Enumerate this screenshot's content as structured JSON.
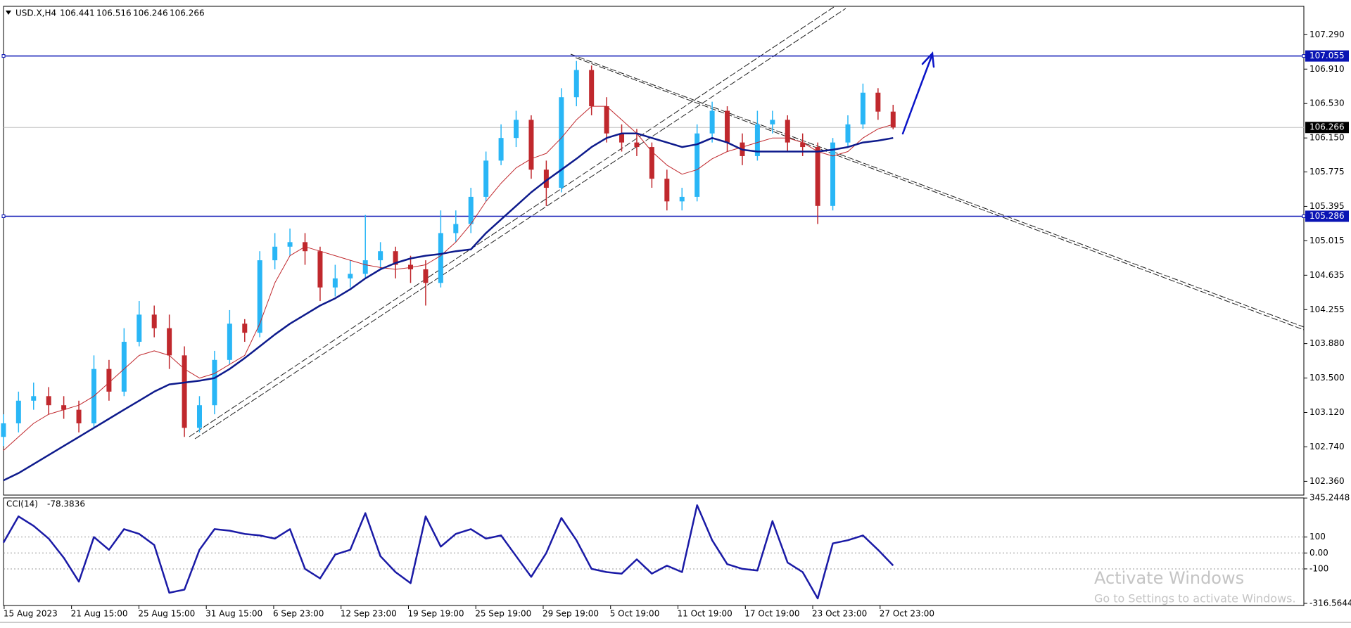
{
  "chart_data": {
    "type": "candlestick",
    "symbol": "USD.X,H4",
    "ylim": [
      102.208,
      107.603
    ],
    "yticks": [
      {
        "value": 107.29,
        "label": "107.290"
      },
      {
        "value": 106.91,
        "label": "106.910"
      },
      {
        "value": 106.53,
        "label": "106.530"
      },
      {
        "value": 106.15,
        "label": "106.150"
      },
      105.775,
      105.395,
      105.015,
      104.635,
      104.255,
      {
        "value": 103.88,
        "label": "103.880"
      },
      {
        "value": 103.5,
        "label": "103.500"
      },
      {
        "value": 103.12,
        "label": "103.120"
      },
      {
        "value": 102.74,
        "label": "102.740"
      },
      {
        "value": 102.36,
        "label": "102.360"
      }
    ],
    "up_color": "#29b6f6",
    "down_color": "#c0282d",
    "candles": [
      [
        102.85,
        103.1,
        102.75,
        103.0
      ],
      [
        103.0,
        103.35,
        102.9,
        103.25
      ],
      [
        103.25,
        103.45,
        103.15,
        103.3
      ],
      [
        103.3,
        103.4,
        103.1,
        103.2
      ],
      [
        103.2,
        103.3,
        103.05,
        103.15
      ],
      [
        103.15,
        103.25,
        102.9,
        103.0
      ],
      [
        103.0,
        103.75,
        102.95,
        103.6
      ],
      [
        103.6,
        103.7,
        103.25,
        103.35
      ],
      [
        103.35,
        104.05,
        103.3,
        103.9
      ],
      [
        103.9,
        104.35,
        103.85,
        104.2
      ],
      [
        104.2,
        104.3,
        103.95,
        104.05
      ],
      [
        104.05,
        104.2,
        103.6,
        103.75
      ],
      [
        103.75,
        103.85,
        102.85,
        102.95
      ],
      [
        102.95,
        103.3,
        102.9,
        103.2
      ],
      [
        103.2,
        103.8,
        103.1,
        103.7
      ],
      [
        103.7,
        104.25,
        103.65,
        104.1
      ],
      [
        104.1,
        104.15,
        103.9,
        104.0
      ],
      [
        104.0,
        104.9,
        103.95,
        104.8
      ],
      [
        104.8,
        105.1,
        104.7,
        104.95
      ],
      [
        104.95,
        105.15,
        104.85,
        105.0
      ],
      [
        105.0,
        105.1,
        104.75,
        104.9
      ],
      [
        104.9,
        104.95,
        104.35,
        104.5
      ],
      [
        104.5,
        104.75,
        104.4,
        104.6
      ],
      [
        104.6,
        104.8,
        104.5,
        104.65
      ],
      [
        104.65,
        105.3,
        104.6,
        104.8
      ],
      [
        104.8,
        105.0,
        104.7,
        104.9
      ],
      [
        104.9,
        104.95,
        104.6,
        104.75
      ],
      [
        104.75,
        104.85,
        104.55,
        104.7
      ],
      [
        104.7,
        104.8,
        104.3,
        104.55
      ],
      [
        104.55,
        105.35,
        104.5,
        105.1
      ],
      [
        105.1,
        105.35,
        105.0,
        105.2
      ],
      [
        105.2,
        105.6,
        105.1,
        105.5
      ],
      [
        105.5,
        106.0,
        105.45,
        105.9
      ],
      [
        105.9,
        106.3,
        105.85,
        106.15
      ],
      [
        106.15,
        106.45,
        106.05,
        106.35
      ],
      [
        106.35,
        106.4,
        105.7,
        105.8
      ],
      [
        105.8,
        105.9,
        105.4,
        105.6
      ],
      [
        105.6,
        106.7,
        105.55,
        106.6
      ],
      [
        106.6,
        107.0,
        106.5,
        106.9
      ],
      [
        106.9,
        106.95,
        106.4,
        106.5
      ],
      [
        106.5,
        106.6,
        106.1,
        106.2
      ],
      [
        106.2,
        106.3,
        106.0,
        106.1
      ],
      [
        106.1,
        106.25,
        105.95,
        106.05
      ],
      [
        106.05,
        106.1,
        105.6,
        105.7
      ],
      [
        105.7,
        105.8,
        105.35,
        105.45
      ],
      [
        105.45,
        105.6,
        105.35,
        105.5
      ],
      [
        105.5,
        106.3,
        105.45,
        106.2
      ],
      [
        106.2,
        106.55,
        106.1,
        106.45
      ],
      [
        106.45,
        106.5,
        106.0,
        106.1
      ],
      [
        106.1,
        106.2,
        105.85,
        105.95
      ],
      [
        105.95,
        106.45,
        105.9,
        106.3
      ],
      [
        106.3,
        106.45,
        106.2,
        106.35
      ],
      [
        106.35,
        106.4,
        106.0,
        106.1
      ],
      [
        106.1,
        106.2,
        105.95,
        106.05
      ],
      [
        106.05,
        106.1,
        105.2,
        105.4
      ],
      [
        105.4,
        106.15,
        105.35,
        106.1
      ],
      [
        106.1,
        106.4,
        106.05,
        106.3
      ],
      [
        106.3,
        106.75,
        106.25,
        106.65
      ],
      [
        106.65,
        106.7,
        106.35,
        106.441
      ],
      [
        106.441,
        106.516,
        106.246,
        106.266
      ]
    ],
    "lines": [
      {
        "color": "#c0282d",
        "width": 1,
        "values": [
          102.7,
          102.85,
          103.0,
          103.1,
          103.15,
          103.2,
          103.3,
          103.45,
          103.6,
          103.75,
          103.8,
          103.75,
          103.6,
          103.5,
          103.55,
          103.65,
          103.75,
          104.1,
          104.55,
          104.85,
          104.95,
          104.9,
          104.85,
          104.8,
          104.75,
          104.72,
          104.7,
          104.72,
          104.75,
          104.85,
          105.0,
          105.2,
          105.45,
          105.65,
          105.82,
          105.92,
          105.98,
          106.15,
          106.35,
          106.5,
          106.5,
          106.35,
          106.2,
          106.0,
          105.85,
          105.75,
          105.8,
          105.92,
          106.0,
          106.05,
          106.1,
          106.15,
          106.15,
          106.1,
          106.0,
          105.95,
          106.0,
          106.15,
          106.25,
          106.3
        ]
      },
      {
        "color": "#0d1a8c",
        "width": 2.5,
        "values": [
          102.37,
          102.45,
          102.55,
          102.65,
          102.75,
          102.85,
          102.95,
          103.05,
          103.15,
          103.25,
          103.35,
          103.43,
          103.45,
          103.47,
          103.5,
          103.6,
          103.72,
          103.85,
          103.98,
          104.1,
          104.2,
          104.3,
          104.38,
          104.48,
          104.6,
          104.7,
          104.77,
          104.82,
          104.85,
          104.87,
          104.9,
          104.92,
          105.1,
          105.25,
          105.4,
          105.55,
          105.68,
          105.8,
          105.92,
          106.05,
          106.15,
          106.2,
          106.2,
          106.15,
          106.1,
          106.05,
          106.08,
          106.15,
          106.1,
          106.02,
          106.0,
          106.0,
          106.0,
          106.0,
          106.0,
          106.02,
          106.05,
          106.1,
          106.12,
          106.15
        ]
      }
    ],
    "levels": [
      {
        "value": 107.055,
        "color": "#0a14b4"
      },
      {
        "value": 105.286,
        "color": "#0a14b4"
      }
    ],
    "cci": {
      "label": "CCI(14)",
      "color": "#1a1aa6",
      "ylim": [
        -330,
        346
      ],
      "yticks": [
        345.2448,
        100,
        {
          "value": 0,
          "label": "0.00"
        },
        -100,
        -316.5644
      ],
      "values": [
        65,
        230,
        170,
        90,
        -30,
        -180,
        100,
        20,
        150,
        120,
        50,
        -250,
        -230,
        20,
        150,
        140,
        120,
        110,
        90,
        150,
        -100,
        -160,
        -10,
        20,
        250,
        -20,
        -120,
        -190,
        230,
        40,
        120,
        150,
        90,
        110,
        -20,
        -150,
        0,
        220,
        80,
        -100,
        -120,
        -130,
        -40,
        -130,
        -80,
        -120,
        300,
        80,
        -70,
        -100,
        -110,
        200,
        -60,
        -120,
        -286,
        60,
        80,
        110,
        20,
        -78.3836
      ]
    },
    "time_labels": [
      "15 Aug 2023",
      "21 Aug 15:00",
      "25 Aug 15:00",
      "31 Aug 15:00",
      "6 Sep 23:00",
      "12 Sep 23:00",
      "19 Sep 19:00",
      "25 Sep 19:00",
      "29 Sep 19:00",
      "5 Oct 19:00",
      "11 Oct 19:00",
      "17 Oct 19:00",
      "23 Oct 23:00",
      "27 Oct 23:00"
    ],
    "watermark": {
      "title": "Activate Windows",
      "subtitle": "Go to Settings to activate Windows."
    }
  }
}
